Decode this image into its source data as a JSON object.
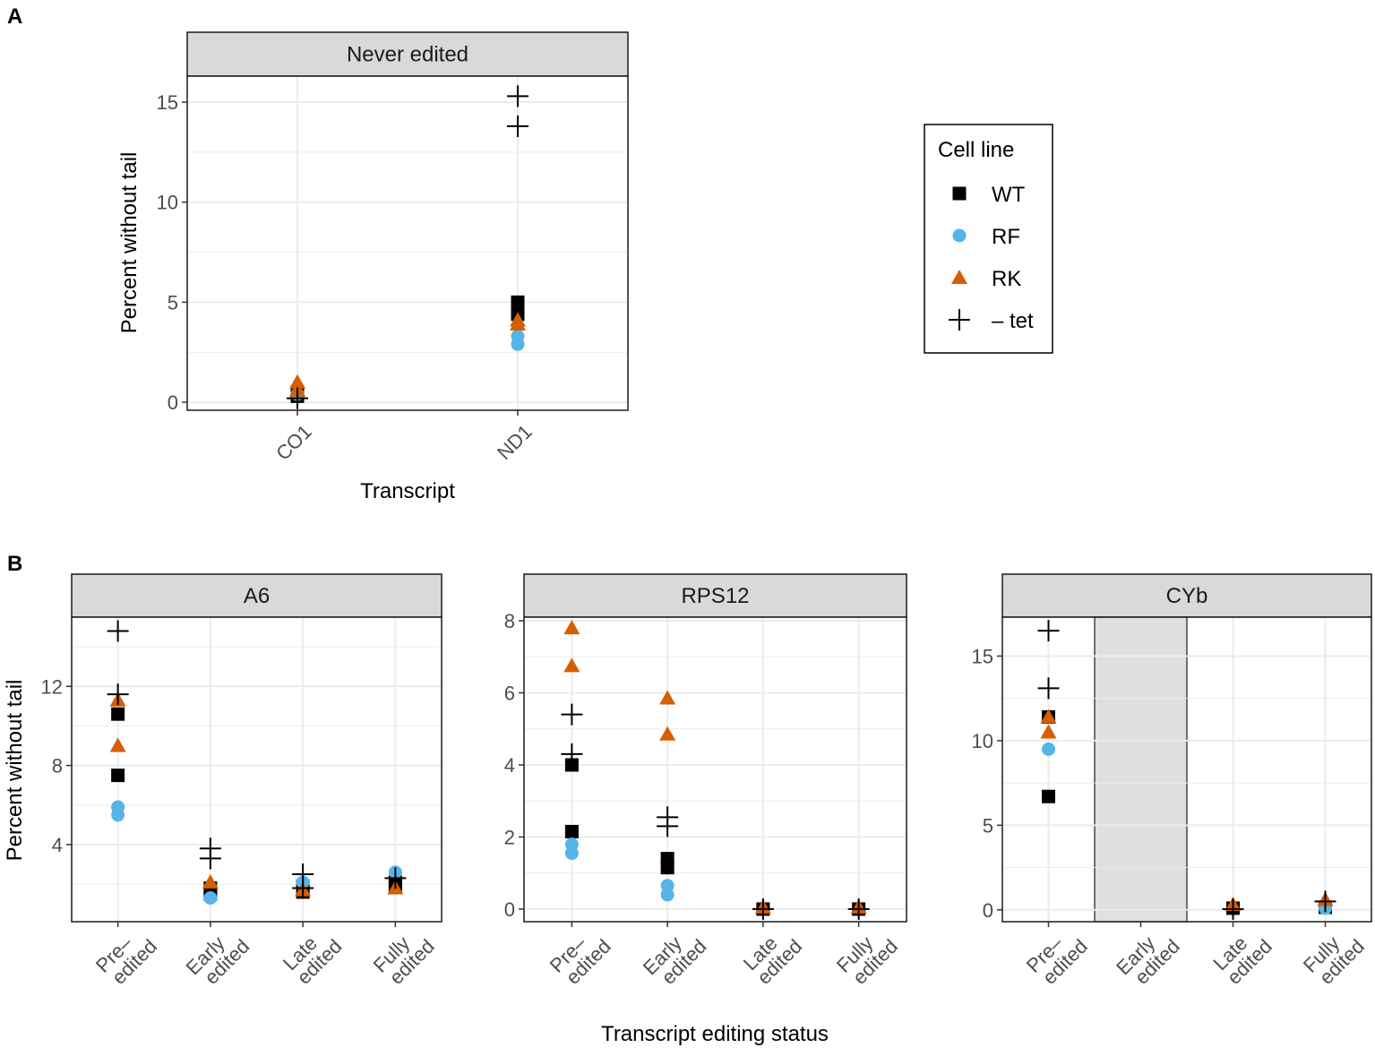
{
  "colors": {
    "WT": "#000000",
    "RF": "#56b4e9",
    "RK": "#d55e00",
    "tet": "#000000",
    "strip": "#d9d9d9",
    "grid": "#ebebeb",
    "missing": "#e0e0e0"
  },
  "legend": {
    "title": "Cell line",
    "items": [
      {
        "key": "WT",
        "label": "WT",
        "shape": "square"
      },
      {
        "key": "RF",
        "label": "RF",
        "shape": "circle"
      },
      {
        "key": "RK",
        "label": "RK",
        "shape": "triangle"
      },
      {
        "key": "tet",
        "label": "– tet",
        "shape": "plus"
      }
    ]
  },
  "panel_labels": {
    "a": "A",
    "b": "B"
  },
  "axis_labels": {
    "ylabel": "Percent without tail",
    "xlabel_a": "Transcript",
    "xlabel_b": "Transcript editing status"
  },
  "chart_data": [
    {
      "type": "scatter",
      "title": "Never edited",
      "categories": [
        "CO1",
        "ND1"
      ],
      "ylim": [
        -0.4,
        16.3
      ],
      "yticks": [
        0,
        5,
        10,
        15
      ],
      "series": [
        {
          "name": "WT",
          "points": [
            {
              "x": "CO1",
              "y": 0.5
            },
            {
              "x": "CO1",
              "y": 0.3
            },
            {
              "x": "ND1",
              "y": 5.0
            },
            {
              "x": "ND1",
              "y": 4.4
            }
          ]
        },
        {
          "name": "RF",
          "points": [
            {
              "x": "CO1",
              "y": 0.4
            },
            {
              "x": "ND1",
              "y": 2.9
            },
            {
              "x": "ND1",
              "y": 3.3
            }
          ]
        },
        {
          "name": "RK",
          "points": [
            {
              "x": "CO1",
              "y": 1.0
            },
            {
              "x": "CO1",
              "y": 0.6
            },
            {
              "x": "ND1",
              "y": 3.9
            },
            {
              "x": "ND1",
              "y": 4.1
            }
          ]
        },
        {
          "name": "tet",
          "points": [
            {
              "x": "CO1",
              "y": 0.2
            },
            {
              "x": "ND1",
              "y": 15.3
            },
            {
              "x": "ND1",
              "y": 13.8
            }
          ]
        }
      ]
    },
    {
      "type": "scatter",
      "title": "A6",
      "categories": [
        "Pre–\nedited",
        "Early\nedited",
        "Late\nedited",
        "Fully\nedited"
      ],
      "ylim": [
        0.1,
        15.5
      ],
      "yticks": [
        4,
        8,
        12
      ],
      "series": [
        {
          "name": "WT",
          "points": [
            {
              "x": 0,
              "y": 10.6
            },
            {
              "x": 0,
              "y": 7.5
            },
            {
              "x": 1,
              "y": 1.8
            },
            {
              "x": 1,
              "y": 1.5
            },
            {
              "x": 2,
              "y": 1.9
            },
            {
              "x": 2,
              "y": 1.6
            },
            {
              "x": 3,
              "y": 2.1
            },
            {
              "x": 3,
              "y": 1.9
            }
          ]
        },
        {
          "name": "RF",
          "points": [
            {
              "x": 0,
              "y": 5.9
            },
            {
              "x": 0,
              "y": 5.5
            },
            {
              "x": 1,
              "y": 1.3
            },
            {
              "x": 2,
              "y": 2.1
            },
            {
              "x": 3,
              "y": 2.6
            }
          ]
        },
        {
          "name": "RK",
          "points": [
            {
              "x": 0,
              "y": 11.3
            },
            {
              "x": 0,
              "y": 9.0
            },
            {
              "x": 1,
              "y": 2.1
            },
            {
              "x": 2,
              "y": 1.7
            },
            {
              "x": 3,
              "y": 1.8
            }
          ]
        },
        {
          "name": "tet",
          "points": [
            {
              "x": 0,
              "y": 14.8
            },
            {
              "x": 0,
              "y": 11.6
            },
            {
              "x": 1,
              "y": 3.8
            },
            {
              "x": 1,
              "y": 3.3
            },
            {
              "x": 2,
              "y": 2.5
            },
            {
              "x": 2,
              "y": 1.8
            },
            {
              "x": 3,
              "y": 2.3
            }
          ]
        }
      ]
    },
    {
      "type": "scatter",
      "title": "RPS12",
      "categories": [
        "Pre–\nedited",
        "Early\nedited",
        "Late\nedited",
        "Fully\nedited"
      ],
      "ylim": [
        -0.35,
        8.1
      ],
      "yticks": [
        0,
        2,
        4,
        6,
        8
      ],
      "series": [
        {
          "name": "WT",
          "points": [
            {
              "x": 0,
              "y": 4.0
            },
            {
              "x": 0,
              "y": 2.15
            },
            {
              "x": 1,
              "y": 1.4
            },
            {
              "x": 1,
              "y": 1.15
            },
            {
              "x": 2,
              "y": 0.0
            },
            {
              "x": 3,
              "y": 0.0
            }
          ]
        },
        {
          "name": "RF",
          "points": [
            {
              "x": 0,
              "y": 1.8
            },
            {
              "x": 0,
              "y": 1.55
            },
            {
              "x": 1,
              "y": 0.65
            },
            {
              "x": 1,
              "y": 0.4
            }
          ]
        },
        {
          "name": "RK",
          "points": [
            {
              "x": 0,
              "y": 7.8
            },
            {
              "x": 0,
              "y": 6.75
            },
            {
              "x": 1,
              "y": 5.85
            },
            {
              "x": 1,
              "y": 4.85
            },
            {
              "x": 2,
              "y": 0.05
            },
            {
              "x": 3,
              "y": 0.05
            }
          ]
        },
        {
          "name": "tet",
          "points": [
            {
              "x": 0,
              "y": 5.4
            },
            {
              "x": 0,
              "y": 4.3
            },
            {
              "x": 1,
              "y": 2.55
            },
            {
              "x": 1,
              "y": 2.3
            },
            {
              "x": 2,
              "y": 0.0
            },
            {
              "x": 3,
              "y": 0.0
            }
          ]
        }
      ]
    },
    {
      "type": "scatter",
      "title": "CYb",
      "categories": [
        "Pre–\nedited",
        "Early\nedited",
        "Late\nedited",
        "Fully\nedited"
      ],
      "ylim": [
        -0.7,
        17.3
      ],
      "yticks": [
        0,
        5,
        10,
        15
      ],
      "missing_category": 1,
      "series": [
        {
          "name": "WT",
          "points": [
            {
              "x": 0,
              "y": 11.4
            },
            {
              "x": 0,
              "y": 6.7
            },
            {
              "x": 2,
              "y": 0.1
            },
            {
              "x": 3,
              "y": 0.15
            }
          ]
        },
        {
          "name": "RF",
          "points": [
            {
              "x": 0,
              "y": 9.5
            },
            {
              "x": 3,
              "y": 0.1
            }
          ]
        },
        {
          "name": "RK",
          "points": [
            {
              "x": 0,
              "y": 11.4
            },
            {
              "x": 0,
              "y": 10.5
            },
            {
              "x": 2,
              "y": 0.3
            },
            {
              "x": 3,
              "y": 0.6
            }
          ]
        },
        {
          "name": "tet",
          "points": [
            {
              "x": 0,
              "y": 16.5
            },
            {
              "x": 0,
              "y": 13.1
            },
            {
              "x": 2,
              "y": 0.05
            },
            {
              "x": 3,
              "y": 0.5
            }
          ]
        }
      ]
    }
  ]
}
